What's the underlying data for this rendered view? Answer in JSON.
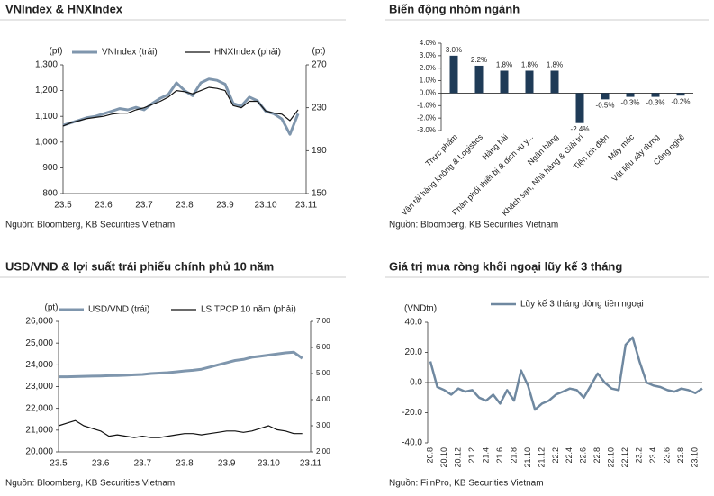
{
  "chart_data": [
    {
      "type": "line",
      "title": "VNIndex & HNXIndex",
      "source": "Nguồn: Bloomberg, KB Securities Vietnam",
      "y_label": "(pt)",
      "y2_label": "(pt)",
      "legend": "top",
      "categories": [
        "23.5",
        null,
        null,
        null,
        null,
        "23.6",
        null,
        null,
        null,
        null,
        "23.7",
        null,
        null,
        null,
        null,
        "23.8",
        null,
        null,
        null,
        null,
        "23.9",
        null,
        null,
        null,
        null,
        "23.10",
        null,
        null,
        null,
        null,
        "23.11"
      ],
      "ylim": [
        800,
        1300
      ],
      "yticks": [
        800,
        900,
        {
          "value": 1000,
          "label": "1,000"
        },
        {
          "value": 1100,
          "label": "1,100"
        },
        {
          "value": 1200,
          "label": "1,200"
        },
        {
          "value": 1300,
          "label": "1,300"
        }
      ],
      "y2lim": [
        150,
        270
      ],
      "y2ticks": [
        150,
        190,
        230,
        270
      ],
      "series": [
        {
          "name": "VNIndex (trái)",
          "color": "#7f96ad",
          "values": [
            1065,
            1075,
            1085,
            1095,
            1100,
            1110,
            1120,
            1130,
            1125,
            1135,
            1125,
            1150,
            1170,
            1185,
            1230,
            1200,
            1180,
            1230,
            1245,
            1240,
            1225,
            1150,
            1140,
            1175,
            1160,
            1120,
            1110,
            1090,
            1030,
            1110,
            null
          ]
        },
        {
          "name": "HNXIndex (phải)",
          "color": "#111111",
          "axis": "y2",
          "values": [
            213,
            216,
            218,
            220,
            221,
            222,
            224,
            225,
            225,
            228,
            230,
            233,
            236,
            240,
            246,
            245,
            243,
            246,
            249,
            248,
            246,
            232,
            230,
            236,
            236,
            227,
            225,
            224,
            218,
            228,
            null
          ]
        }
      ]
    },
    {
      "type": "bar",
      "title": "Biến động nhóm ngành",
      "source": "Nguồn: Bloomberg, KB Securities Vietnam",
      "color": "#1f3b57",
      "categories": [
        "Thực phẩm",
        "Vận tải hàng không & Logistics",
        "Hàng hải",
        "Phân phối thiết bị & dịch vụ y...",
        "Ngân hàng",
        "Khách sạn, Nhà hàng & Giải trí",
        "Tiện ích điện",
        "Máy móc",
        "Vật liệu xây dựng",
        "Công nghệ"
      ],
      "values": [
        3,
        2.2,
        1.8,
        1.8,
        1.8,
        -2.4,
        -0.5,
        -0.3,
        -0.3,
        -0.2
      ],
      "value_labels": [
        "3.0%",
        "2.2%",
        "1.8%",
        "1.8%",
        "1.8%",
        "-2.4%",
        "-0.5%",
        "-0.3%",
        "-0.3%",
        "-0.2%"
      ],
      "ylim": [
        -3,
        4
      ],
      "yticks": [
        {
          "value": -3,
          "label": "-3.0%"
        },
        {
          "value": -2,
          "label": "-2.0%"
        },
        {
          "value": -1,
          "label": "-1.0%"
        },
        {
          "value": 0,
          "label": "0.0%"
        },
        {
          "value": 1,
          "label": "1.0%"
        },
        {
          "value": 2,
          "label": "2.0%"
        },
        {
          "value": 3,
          "label": "3.0%"
        },
        {
          "value": 4,
          "label": "4.0%"
        }
      ]
    },
    {
      "type": "line",
      "title": "USD/VND & lợi suất trái phiếu chính phủ 10 năm",
      "source": "Nguồn: Bloomberg, KB Securities Vietnam",
      "y_label": "(pt)",
      "legend": "top",
      "categories": [
        "23.5",
        null,
        null,
        null,
        null,
        "23.6",
        null,
        null,
        null,
        null,
        "23.7",
        null,
        null,
        null,
        null,
        "23.8",
        null,
        null,
        null,
        null,
        "23.9",
        null,
        null,
        null,
        null,
        "23.10",
        null,
        null,
        null,
        null,
        "23.11"
      ],
      "ylim": [
        20000,
        26000
      ],
      "yticks": [
        {
          "value": 20000,
          "label": "20,000"
        },
        {
          "value": 21000,
          "label": "21,000"
        },
        {
          "value": 22000,
          "label": "22,000"
        },
        {
          "value": 23000,
          "label": "23,000"
        },
        {
          "value": 24000,
          "label": "24,000"
        },
        {
          "value": 25000,
          "label": "25,000"
        },
        {
          "value": 26000,
          "label": "26,000"
        }
      ],
      "y2lim": [
        2,
        7
      ],
      "y2ticks": [
        {
          "value": 2,
          "label": "2.00"
        },
        {
          "value": 3,
          "label": "3.00"
        },
        {
          "value": 4,
          "label": "4.00"
        },
        {
          "value": 5,
          "label": "5.00"
        },
        {
          "value": 6,
          "label": "6.00"
        },
        {
          "value": 7,
          "label": "7.00"
        }
      ],
      "series": [
        {
          "name": "USD/VND (trái)",
          "color": "#7f96ad",
          "values": [
            23450,
            23450,
            23460,
            23470,
            23480,
            23490,
            23500,
            23510,
            23520,
            23540,
            23560,
            23600,
            23620,
            23640,
            23680,
            23720,
            23750,
            23800,
            23900,
            24000,
            24100,
            24200,
            24250,
            24350,
            24400,
            24450,
            24500,
            24550,
            24580,
            24300,
            null
          ]
        },
        {
          "name": "LS TPCP 10 năm (phải)",
          "color": "#111111",
          "axis": "y2",
          "values": [
            3.0,
            3.1,
            3.2,
            3.0,
            2.9,
            2.8,
            2.6,
            2.65,
            2.6,
            2.55,
            2.6,
            2.55,
            2.55,
            2.6,
            2.65,
            2.7,
            2.7,
            2.65,
            2.7,
            2.75,
            2.8,
            2.8,
            2.75,
            2.8,
            2.9,
            3.0,
            2.85,
            2.8,
            2.7,
            2.7,
            null
          ]
        }
      ]
    },
    {
      "type": "line",
      "title": "Giá trị mua ròng khối ngoại lũy kế 3 tháng",
      "source": "Nguồn: FiinPro, KB Securities Vietnam",
      "y_label": "(VNDtn)",
      "legend": "top",
      "categories": [
        "20.8",
        null,
        "20.10",
        null,
        "20.12",
        null,
        "21.2",
        null,
        "21.4",
        null,
        "21.6",
        null,
        "21.8",
        null,
        "21.10",
        null,
        "21.12",
        null,
        "22.2",
        null,
        "22.4",
        null,
        "22.6",
        null,
        "22.8",
        null,
        "22.10",
        null,
        "22.12",
        null,
        "23.2",
        null,
        "23.4",
        null,
        "23.6",
        null,
        "23.8",
        null,
        "23.10",
        null
      ],
      "ylim": [
        -40,
        40
      ],
      "yticks": [
        {
          "value": -40,
          "label": "-40.0"
        },
        {
          "value": -20,
          "label": "-20.0"
        },
        {
          "value": 0,
          "label": "0.0"
        },
        {
          "value": 20,
          "label": "20.0"
        },
        {
          "value": 40,
          "label": "40.0"
        }
      ],
      "series": [
        {
          "name": "Lũy kế 3 tháng dòng tiền ngoại",
          "color": "#6f88a0",
          "values": [
            14,
            -3,
            -5,
            -8,
            -4,
            -6,
            -5,
            -10,
            -12,
            -8,
            -14,
            -5,
            -12,
            8,
            -2,
            -18,
            -14,
            -12,
            -8,
            -6,
            -4,
            -5,
            -10,
            -2,
            6,
            0,
            -4,
            -5,
            25,
            30,
            14,
            0,
            -2,
            -3,
            -5,
            -6,
            -4,
            -5,
            -7,
            -4
          ]
        }
      ]
    }
  ]
}
